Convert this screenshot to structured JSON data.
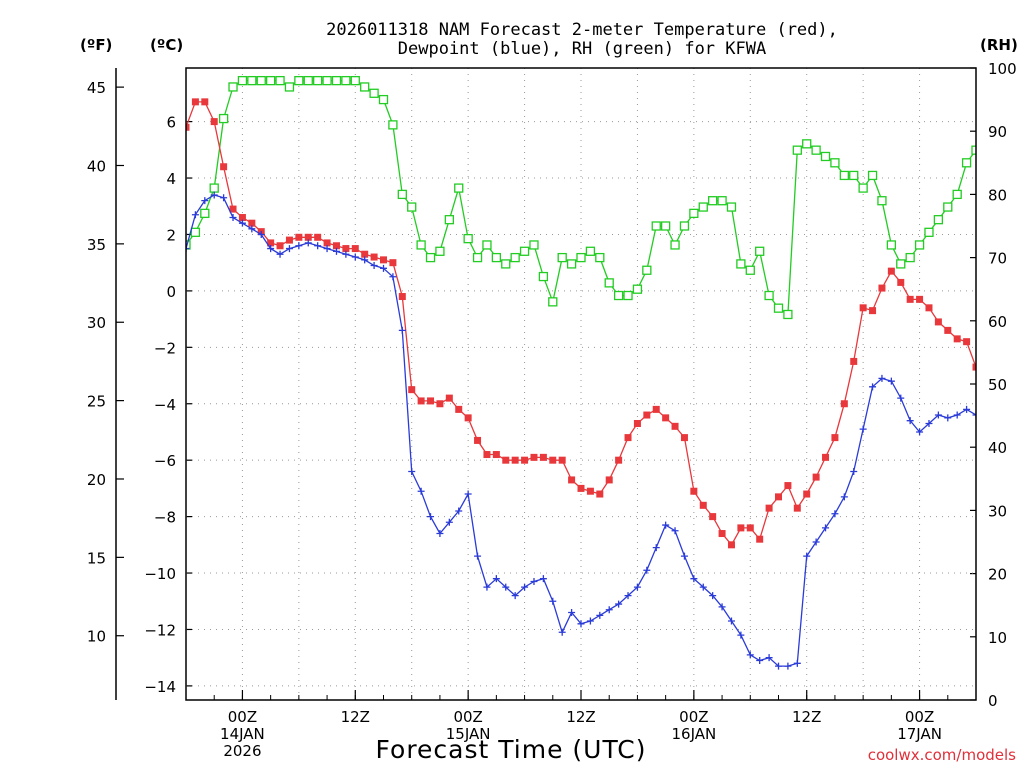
{
  "chart_data": {
    "type": "line",
    "title_line1": "2026011318 NAM Forecast 2-meter Temperature (red),",
    "title_line2": "Dewpoint (blue), RH (green) for KFWA",
    "xlabel": "Forecast Time (UTC)",
    "credit": "coolwx.com/models",
    "units": {
      "fahrenheit": "(ºF)",
      "celsius": "(ºC)",
      "rh": "(RH)"
    },
    "x_hours_range": [
      -6,
      78
    ],
    "celsius_range": [
      -14.5,
      7.9
    ],
    "rh_range": [
      0,
      100
    ],
    "fahrenheit_ticks": [
      "10",
      "15",
      "20",
      "25",
      "30",
      "35",
      "40",
      "45"
    ],
    "celsius_ticks": [
      "−14",
      "−12",
      "−10",
      "−8",
      "−6",
      "−4",
      "−2",
      "0",
      "2",
      "4",
      "6"
    ],
    "rh_ticks": [
      "0",
      "10",
      "20",
      "30",
      "40",
      "50",
      "60",
      "70",
      "80",
      "90",
      "100"
    ],
    "x_ticks": [
      {
        "hour": 0,
        "line1": "00Z",
        "line2": "14JAN",
        "line3": "2026"
      },
      {
        "hour": 12,
        "line1": "12Z",
        "line2": "",
        "line3": ""
      },
      {
        "hour": 24,
        "line1": "00Z",
        "line2": "15JAN",
        "line3": ""
      },
      {
        "hour": 36,
        "line1": "12Z",
        "line2": "",
        "line3": ""
      },
      {
        "hour": 48,
        "line1": "00Z",
        "line2": "16JAN",
        "line3": ""
      },
      {
        "hour": 60,
        "line1": "12Z",
        "line2": "",
        "line3": ""
      },
      {
        "hour": 72,
        "line1": "00Z",
        "line2": "17JAN",
        "line3": ""
      }
    ],
    "series": [
      {
        "name": "2-meter Temperature",
        "unit": "C",
        "color": "#e8383c",
        "marker": "filled-square",
        "points": [
          [
            -6,
            5.8
          ],
          [
            -5,
            6.7
          ],
          [
            -4,
            6.7
          ],
          [
            -3,
            6.0
          ],
          [
            -2,
            4.4
          ],
          [
            -1,
            2.9
          ],
          [
            0,
            2.6
          ],
          [
            1,
            2.4
          ],
          [
            2,
            2.1
          ],
          [
            3,
            1.7
          ],
          [
            4,
            1.6
          ],
          [
            5,
            1.8
          ],
          [
            6,
            1.9
          ],
          [
            7,
            1.9
          ],
          [
            8,
            1.9
          ],
          [
            9,
            1.7
          ],
          [
            10,
            1.6
          ],
          [
            11,
            1.5
          ],
          [
            12,
            1.5
          ],
          [
            13,
            1.3
          ],
          [
            14,
            1.2
          ],
          [
            15,
            1.1
          ],
          [
            16,
            1.0
          ],
          [
            17,
            -0.2
          ],
          [
            18,
            -3.5
          ],
          [
            19,
            -3.9
          ],
          [
            20,
            -3.9
          ],
          [
            21,
            -4.0
          ],
          [
            22,
            -3.8
          ],
          [
            23,
            -4.2
          ],
          [
            24,
            -4.5
          ],
          [
            25,
            -5.3
          ],
          [
            26,
            -5.8
          ],
          [
            27,
            -5.8
          ],
          [
            28,
            -6.0
          ],
          [
            29,
            -6.0
          ],
          [
            30,
            -6.0
          ],
          [
            31,
            -5.9
          ],
          [
            32,
            -5.9
          ],
          [
            33,
            -6.0
          ],
          [
            34,
            -6.0
          ],
          [
            35,
            -6.7
          ],
          [
            36,
            -7.0
          ],
          [
            37,
            -7.1
          ],
          [
            38,
            -7.2
          ],
          [
            39,
            -6.7
          ],
          [
            40,
            -6.0
          ],
          [
            41,
            -5.2
          ],
          [
            42,
            -4.7
          ],
          [
            43,
            -4.4
          ],
          [
            44,
            -4.2
          ],
          [
            45,
            -4.5
          ],
          [
            46,
            -4.8
          ],
          [
            47,
            -5.2
          ],
          [
            48,
            -7.1
          ],
          [
            49,
            -7.6
          ],
          [
            50,
            -8.0
          ],
          [
            51,
            -8.6
          ],
          [
            52,
            -9.0
          ],
          [
            53,
            -8.4
          ],
          [
            54,
            -8.4
          ],
          [
            55,
            -8.8
          ],
          [
            56,
            -7.7
          ],
          [
            57,
            -7.3
          ],
          [
            58,
            -6.9
          ],
          [
            59,
            -7.7
          ],
          [
            60,
            -7.2
          ],
          [
            61,
            -6.6
          ],
          [
            62,
            -5.9
          ],
          [
            63,
            -5.2
          ],
          [
            64,
            -4.0
          ],
          [
            65,
            -2.5
          ],
          [
            66,
            -0.6
          ],
          [
            67,
            -0.7
          ],
          [
            68,
            0.1
          ],
          [
            69,
            0.7
          ],
          [
            70,
            0.3
          ],
          [
            71,
            -0.3
          ],
          [
            72,
            -0.3
          ],
          [
            73,
            -0.6
          ],
          [
            74,
            -1.1
          ],
          [
            75,
            -1.4
          ],
          [
            76,
            -1.7
          ],
          [
            77,
            -1.8
          ],
          [
            78,
            -2.7
          ]
        ]
      },
      {
        "name": "Dewpoint",
        "unit": "C",
        "color": "#2a3bd8",
        "marker": "plus",
        "points": [
          [
            -6,
            1.5
          ],
          [
            -5,
            2.7
          ],
          [
            -4,
            3.2
          ],
          [
            -3,
            3.4
          ],
          [
            -2,
            3.3
          ],
          [
            -1,
            2.6
          ],
          [
            0,
            2.4
          ],
          [
            1,
            2.2
          ],
          [
            2,
            2.0
          ],
          [
            3,
            1.5
          ],
          [
            4,
            1.3
          ],
          [
            5,
            1.5
          ],
          [
            6,
            1.6
          ],
          [
            7,
            1.7
          ],
          [
            8,
            1.6
          ],
          [
            9,
            1.5
          ],
          [
            10,
            1.4
          ],
          [
            11,
            1.3
          ],
          [
            12,
            1.2
          ],
          [
            13,
            1.1
          ],
          [
            14,
            0.9
          ],
          [
            15,
            0.8
          ],
          [
            16,
            0.5
          ],
          [
            17,
            -1.4
          ],
          [
            18,
            -6.4
          ],
          [
            19,
            -7.1
          ],
          [
            20,
            -8.0
          ],
          [
            21,
            -8.6
          ],
          [
            22,
            -8.2
          ],
          [
            23,
            -7.8
          ],
          [
            24,
            -7.2
          ],
          [
            25,
            -9.4
          ],
          [
            26,
            -10.5
          ],
          [
            27,
            -10.2
          ],
          [
            28,
            -10.5
          ],
          [
            29,
            -10.8
          ],
          [
            30,
            -10.5
          ],
          [
            31,
            -10.3
          ],
          [
            32,
            -10.2
          ],
          [
            33,
            -11.0
          ],
          [
            34,
            -12.1
          ],
          [
            35,
            -11.4
          ],
          [
            36,
            -11.8
          ],
          [
            37,
            -11.7
          ],
          [
            38,
            -11.5
          ],
          [
            39,
            -11.3
          ],
          [
            40,
            -11.1
          ],
          [
            41,
            -10.8
          ],
          [
            42,
            -10.5
          ],
          [
            43,
            -9.9
          ],
          [
            44,
            -9.1
          ],
          [
            45,
            -8.3
          ],
          [
            46,
            -8.5
          ],
          [
            47,
            -9.4
          ],
          [
            48,
            -10.2
          ],
          [
            49,
            -10.5
          ],
          [
            50,
            -10.8
          ],
          [
            51,
            -11.2
          ],
          [
            52,
            -11.7
          ],
          [
            53,
            -12.2
          ],
          [
            54,
            -12.9
          ],
          [
            55,
            -13.1
          ],
          [
            56,
            -13.0
          ],
          [
            57,
            -13.3
          ],
          [
            58,
            -13.3
          ],
          [
            59,
            -13.2
          ],
          [
            60,
            -9.4
          ],
          [
            61,
            -8.9
          ],
          [
            62,
            -8.4
          ],
          [
            63,
            -7.9
          ],
          [
            64,
            -7.3
          ],
          [
            65,
            -6.4
          ],
          [
            66,
            -4.9
          ],
          [
            67,
            -3.4
          ],
          [
            68,
            -3.1
          ],
          [
            69,
            -3.2
          ],
          [
            70,
            -3.8
          ],
          [
            71,
            -4.6
          ],
          [
            72,
            -5.0
          ],
          [
            73,
            -4.7
          ],
          [
            74,
            -4.4
          ],
          [
            75,
            -4.5
          ],
          [
            76,
            -4.4
          ],
          [
            77,
            -4.2
          ],
          [
            78,
            -4.4
          ]
        ]
      },
      {
        "name": "RH",
        "unit": "%",
        "color": "#22cc22",
        "marker": "open-square",
        "points": [
          [
            -6,
            72
          ],
          [
            -5,
            74
          ],
          [
            -4,
            77
          ],
          [
            -3,
            81
          ],
          [
            -2,
            92
          ],
          [
            -1,
            97
          ],
          [
            0,
            98
          ],
          [
            1,
            98
          ],
          [
            2,
            98
          ],
          [
            3,
            98
          ],
          [
            4,
            98
          ],
          [
            5,
            97
          ],
          [
            6,
            98
          ],
          [
            7,
            98
          ],
          [
            8,
            98
          ],
          [
            9,
            98
          ],
          [
            10,
            98
          ],
          [
            11,
            98
          ],
          [
            12,
            98
          ],
          [
            13,
            97
          ],
          [
            14,
            96
          ],
          [
            15,
            95
          ],
          [
            16,
            91
          ],
          [
            17,
            80
          ],
          [
            18,
            78
          ],
          [
            19,
            72
          ],
          [
            20,
            70
          ],
          [
            21,
            71
          ],
          [
            22,
            76
          ],
          [
            23,
            81
          ],
          [
            24,
            73
          ],
          [
            25,
            70
          ],
          [
            26,
            72
          ],
          [
            27,
            70
          ],
          [
            28,
            69
          ],
          [
            29,
            70
          ],
          [
            30,
            71
          ],
          [
            31,
            72
          ],
          [
            32,
            67
          ],
          [
            33,
            63
          ],
          [
            34,
            70
          ],
          [
            35,
            69
          ],
          [
            36,
            70
          ],
          [
            37,
            71
          ],
          [
            38,
            70
          ],
          [
            39,
            66
          ],
          [
            40,
            64
          ],
          [
            41,
            64
          ],
          [
            42,
            65
          ],
          [
            43,
            68
          ],
          [
            44,
            75
          ],
          [
            45,
            75
          ],
          [
            46,
            72
          ],
          [
            47,
            75
          ],
          [
            48,
            77
          ],
          [
            49,
            78
          ],
          [
            50,
            79
          ],
          [
            51,
            79
          ],
          [
            52,
            78
          ],
          [
            53,
            69
          ],
          [
            54,
            68
          ],
          [
            55,
            71
          ],
          [
            56,
            64
          ],
          [
            57,
            62
          ],
          [
            58,
            61
          ],
          [
            59,
            87
          ],
          [
            60,
            88
          ],
          [
            61,
            87
          ],
          [
            62,
            86
          ],
          [
            63,
            85
          ],
          [
            64,
            83
          ],
          [
            65,
            83
          ],
          [
            66,
            81
          ],
          [
            67,
            83
          ],
          [
            68,
            79
          ],
          [
            69,
            72
          ],
          [
            70,
            69
          ],
          [
            71,
            70
          ],
          [
            72,
            72
          ],
          [
            73,
            74
          ],
          [
            74,
            76
          ],
          [
            75,
            78
          ],
          [
            76,
            80
          ],
          [
            77,
            85
          ],
          [
            78,
            87
          ]
        ]
      }
    ]
  }
}
